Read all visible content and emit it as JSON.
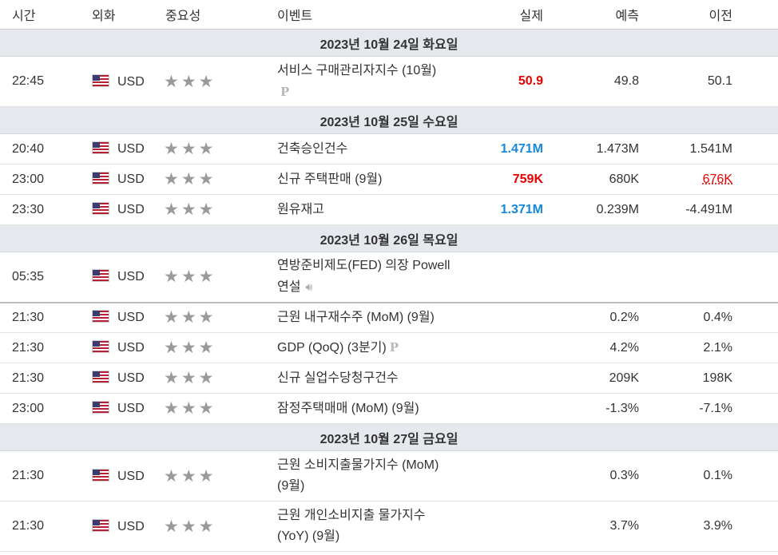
{
  "headers": {
    "time": "시간",
    "currency": "외화",
    "importance": "중요성",
    "event": "이벤트",
    "actual": "실제",
    "forecast": "예측",
    "previous": "이전"
  },
  "dates": [
    "2023년 10월 24일 화요일",
    "2023년 10월 25일 수요일",
    "2023년 10월 26일 목요일",
    "2023년 10월 27일 금요일"
  ],
  "colors": {
    "actual_red": "#e80000",
    "actual_blue": "#1688d9",
    "date_row_bg": "#e5e8ed",
    "star_gray": "#9a9a9a"
  },
  "events": [
    {
      "time": "22:45",
      "currency": "USD",
      "stars": 3,
      "name_line1": "서비스 구매관리자지수 (10월)",
      "name_line2": "",
      "icon": "P",
      "actual": "50.9",
      "forecast": "49.8",
      "previous": "50.1"
    },
    {
      "time": "20:40",
      "currency": "USD",
      "stars": 3,
      "name_line1": "건축승인건수",
      "name_line2": "",
      "icon": "",
      "actual": "1.471M",
      "forecast": "1.473M",
      "previous": "1.541M"
    },
    {
      "time": "23:00",
      "currency": "USD",
      "stars": 3,
      "name_line1": "신규 주택판매 (9월)",
      "name_line2": "",
      "icon": "",
      "actual": "759K",
      "forecast": "680K",
      "previous": "676K"
    },
    {
      "time": "23:30",
      "currency": "USD",
      "stars": 3,
      "name_line1": "원유재고",
      "name_line2": "",
      "icon": "",
      "actual": "1.371M",
      "forecast": "0.239M",
      "previous": "-4.491M"
    },
    {
      "time": "05:35",
      "currency": "USD",
      "stars": 3,
      "name_line1": "연방준비제도(FED) 의장 Powell",
      "name_line2": "연설",
      "icon": "speaker",
      "actual": "",
      "forecast": "",
      "previous": ""
    },
    {
      "time": "21:30",
      "currency": "USD",
      "stars": 3,
      "name_line1": "근원 내구재수주 (MoM) (9월)",
      "name_line2": "",
      "icon": "",
      "actual": "",
      "forecast": "0.2%",
      "previous": "0.4%"
    },
    {
      "time": "21:30",
      "currency": "USD",
      "stars": 3,
      "name_line1": "GDP (QoQ) (3분기)",
      "name_line2": "",
      "icon": "P",
      "actual": "",
      "forecast": "4.2%",
      "previous": "2.1%"
    },
    {
      "time": "21:30",
      "currency": "USD",
      "stars": 3,
      "name_line1": "신규 실업수당청구건수",
      "name_line2": "",
      "icon": "",
      "actual": "",
      "forecast": "209K",
      "previous": "198K"
    },
    {
      "time": "23:00",
      "currency": "USD",
      "stars": 3,
      "name_line1": "잠정주택매매 (MoM) (9월)",
      "name_line2": "",
      "icon": "",
      "actual": "",
      "forecast": "-1.3%",
      "previous": "-7.1%"
    },
    {
      "time": "21:30",
      "currency": "USD",
      "stars": 3,
      "name_line1": "근원 소비지출물가지수 (MoM)",
      "name_line2": "(9월)",
      "icon": "",
      "actual": "",
      "forecast": "0.3%",
      "previous": "0.1%"
    },
    {
      "time": "21:30",
      "currency": "USD",
      "stars": 3,
      "name_line1": "근원 개인소비지출 물가지수",
      "name_line2": "(YoY) (9월)",
      "icon": "",
      "actual": "",
      "forecast": "3.7%",
      "previous": "3.9%"
    }
  ]
}
